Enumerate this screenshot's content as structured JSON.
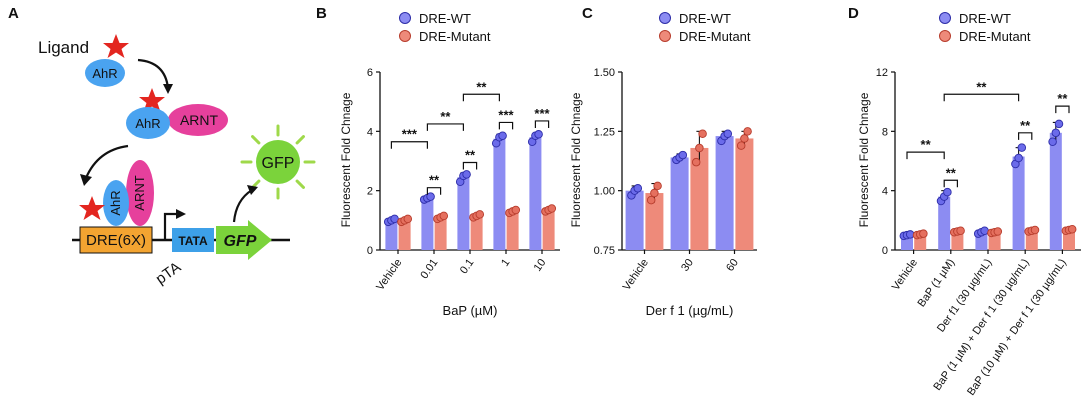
{
  "colors": {
    "wt_bar": "#8c8cf2",
    "wt_dot": "#6b6bea",
    "wt_edge": "#2d2da8",
    "mut_bar": "#ee8a7a",
    "mut_dot": "#e5705f",
    "mut_edge": "#b83d2d",
    "ahr": "#4aa3f0",
    "arnt": "#e6409c",
    "star": "#e32620",
    "dre_box": "#f3a431",
    "tata_box": "#3da0e8",
    "gfp": "#7bd33b",
    "glow": "#9fd94a"
  },
  "panel_a": {
    "label": "A",
    "ligand": "Ligand",
    "ahr": "AhR",
    "arnt": "ARNT",
    "gfp_bubble": "GFP",
    "dre": "DRE(6X)",
    "tata": "TATA",
    "gfp_gene": "GFP",
    "promoter": "pTA"
  },
  "chart_data": [
    {
      "panel": "B",
      "type": "bar",
      "xlabel": "BaP (µM)",
      "ylabel": "Fluorescent Fold Chnage",
      "ylim": [
        0,
        6
      ],
      "yticks": [
        "0",
        "2",
        "4",
        "6"
      ],
      "categories": [
        "Vehicle",
        "0.01",
        "0.1",
        "1",
        "10"
      ],
      "legend": [
        "DRE-WT",
        "DRE-Mutant"
      ],
      "series": [
        {
          "name": "DRE-WT",
          "values": [
            1.0,
            1.75,
            2.45,
            3.75,
            3.8
          ],
          "errors": [
            0.06,
            0.08,
            0.15,
            0.15,
            0.12
          ],
          "points": [
            [
              0.95,
              1.0,
              1.05
            ],
            [
              1.7,
              1.75,
              1.8
            ],
            [
              2.3,
              2.5,
              2.55
            ],
            [
              3.6,
              3.8,
              3.85
            ],
            [
              3.65,
              3.85,
              3.9
            ]
          ]
        },
        {
          "name": "DRE-Mutant",
          "values": [
            1.0,
            1.1,
            1.15,
            1.3,
            1.35
          ],
          "errors": [
            0.05,
            0.05,
            0.06,
            0.06,
            0.07
          ],
          "points": [
            [
              0.95,
              1.0,
              1.05
            ],
            [
              1.05,
              1.1,
              1.15
            ],
            [
              1.1,
              1.15,
              1.2
            ],
            [
              1.25,
              1.3,
              1.35
            ],
            [
              1.3,
              1.35,
              1.4
            ]
          ]
        }
      ],
      "annotations": [
        {
          "label": "***",
          "from": 0,
          "fromSeries": 0,
          "to": 1,
          "toSeries": 0,
          "y": 3.65
        },
        {
          "label": "**",
          "from": 1,
          "fromSeries": 0,
          "to": 1,
          "toSeries": 1,
          "y": 2.1
        },
        {
          "label": "**",
          "from": 1,
          "fromSeries": 0,
          "to": 2,
          "toSeries": 0,
          "y": 4.25
        },
        {
          "label": "**",
          "from": 2,
          "fromSeries": 0,
          "to": 2,
          "toSeries": 1,
          "y": 2.95
        },
        {
          "label": "**",
          "from": 2,
          "fromSeries": 0,
          "to": 3,
          "toSeries": 0,
          "y": 5.25
        },
        {
          "label": "***",
          "from": 3,
          "fromSeries": 0,
          "to": 3,
          "toSeries": 1,
          "y": 4.3
        },
        {
          "label": "***",
          "from": 4,
          "fromSeries": 0,
          "to": 4,
          "toSeries": 1,
          "y": 4.35
        }
      ]
    },
    {
      "panel": "C",
      "type": "bar",
      "xlabel": "Der f 1 (µg/mL)",
      "ylabel": "Fluorescent Fold Chnage",
      "ylim": [
        0.75,
        1.5
      ],
      "yticks": [
        "0.75",
        "1.00",
        "1.25",
        "1.50"
      ],
      "categories": [
        "Vehicle",
        "30",
        "60"
      ],
      "legend": [
        "DRE-WT",
        "DRE-Mutant"
      ],
      "series": [
        {
          "name": "DRE-WT",
          "values": [
            1.0,
            1.14,
            1.23
          ],
          "errors": [
            0.02,
            0.015,
            0.02
          ],
          "points": [
            [
              0.98,
              1.0,
              1.01
            ],
            [
              1.13,
              1.14,
              1.15
            ],
            [
              1.21,
              1.23,
              1.24
            ]
          ]
        },
        {
          "name": "DRE-Mutant",
          "values": [
            0.99,
            1.18,
            1.22
          ],
          "errors": [
            0.04,
            0.07,
            0.03
          ],
          "points": [
            [
              0.96,
              0.99,
              1.02
            ],
            [
              1.12,
              1.18,
              1.24
            ],
            [
              1.19,
              1.22,
              1.25
            ]
          ]
        }
      ],
      "annotations": []
    },
    {
      "panel": "D",
      "type": "bar",
      "xlabel": "",
      "ylabel": "Fluorescent Fold Chnage",
      "ylim": [
        0,
        12
      ],
      "yticks": [
        "0",
        "4",
        "8",
        "12"
      ],
      "categories": [
        "Vehicle",
        "BaP (1 µM)",
        "Der f1 (30 µg/mL)",
        "BaP (1 µM) + Der f 1 (30 µg/mL)",
        "BaP (10 µM) + Der f 1 (30 µg/mL)"
      ],
      "legend": [
        "DRE-WT",
        "DRE-Mutant"
      ],
      "series": [
        {
          "name": "DRE-WT",
          "values": [
            1.0,
            3.6,
            1.2,
            6.3,
            7.9
          ],
          "errors": [
            0.1,
            0.4,
            0.1,
            0.6,
            0.7
          ],
          "points": [
            [
              0.95,
              1.0,
              1.05
            ],
            [
              3.3,
              3.6,
              3.9
            ],
            [
              1.1,
              1.2,
              1.3
            ],
            [
              5.8,
              6.2,
              6.9
            ],
            [
              7.3,
              7.9,
              8.5
            ]
          ]
        },
        {
          "name": "DRE-Mutant",
          "values": [
            1.05,
            1.25,
            1.2,
            1.3,
            1.35
          ],
          "errors": [
            0.06,
            0.08,
            0.07,
            0.08,
            0.08
          ],
          "points": [
            [
              1.0,
              1.05,
              1.1
            ],
            [
              1.2,
              1.25,
              1.3
            ],
            [
              1.15,
              1.2,
              1.25
            ],
            [
              1.25,
              1.3,
              1.35
            ],
            [
              1.3,
              1.35,
              1.4
            ]
          ]
        }
      ],
      "annotations": [
        {
          "label": "**",
          "from": 0,
          "fromSeries": 0,
          "to": 1,
          "toSeries": 0,
          "y": 6.6
        },
        {
          "label": "**",
          "from": 1,
          "fromSeries": 0,
          "to": 1,
          "toSeries": 1,
          "y": 4.7
        },
        {
          "label": "**",
          "from": 1,
          "fromSeries": 0,
          "to": 3,
          "toSeries": 0,
          "y": 10.5
        },
        {
          "label": "**",
          "from": 3,
          "fromSeries": 0,
          "to": 3,
          "toSeries": 1,
          "y": 7.9
        },
        {
          "label": "**",
          "from": 4,
          "fromSeries": 0,
          "to": 4,
          "toSeries": 1,
          "y": 9.7
        }
      ]
    }
  ]
}
